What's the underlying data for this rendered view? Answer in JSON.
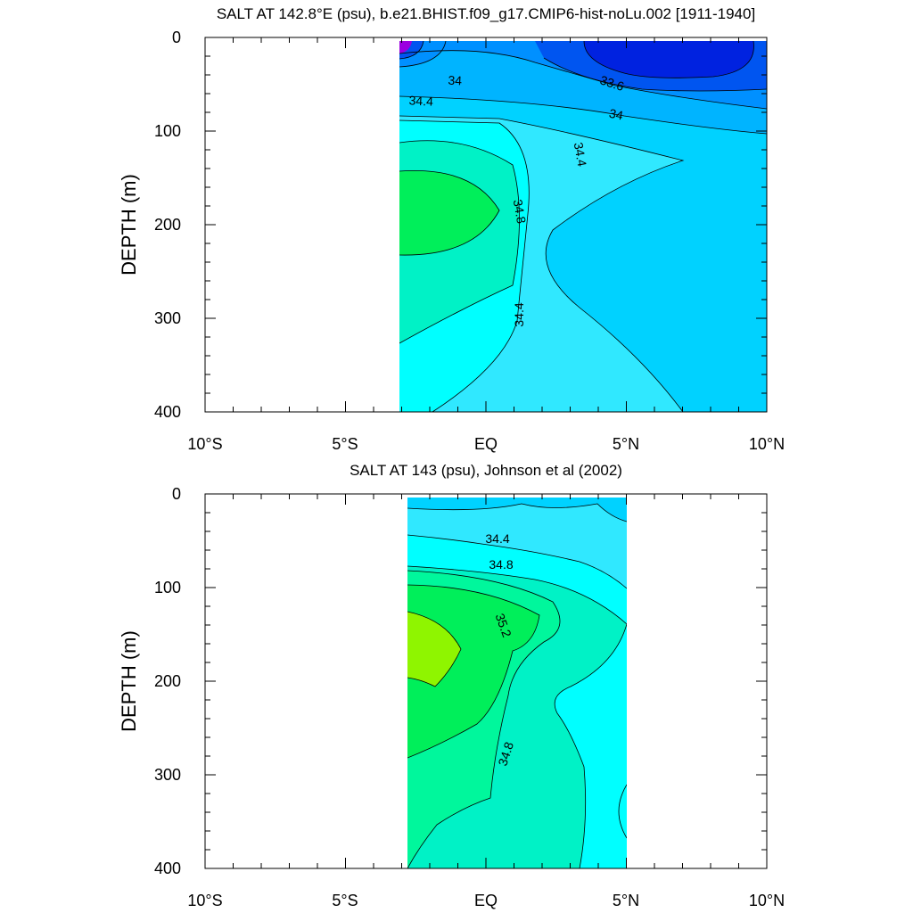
{
  "chart_data": [
    {
      "type": "contour",
      "title": "SALT AT 142.8°E (psu), b.e21.BHIST.f09_g17.CMIP6-hist-noLu.002 [1911-1940]",
      "ylabel": "DEPTH (m)",
      "xlabel": "",
      "xlim": [
        -10,
        10
      ],
      "ylim": [
        400,
        0
      ],
      "x_ticks": [
        "10°S",
        "5°S",
        "EQ",
        "5°N",
        "10°N"
      ],
      "y_ticks": [
        "0",
        "100",
        "200",
        "300",
        "400"
      ],
      "data_extent": {
        "lon": [
          -3.1,
          10.0
        ],
        "depth": [
          0,
          400
        ]
      },
      "contour_labels": [
        "34",
        "33.6",
        "34.4",
        "34",
        "34.4",
        "34.8",
        "34.4"
      ],
      "levels_psu": [
        33.2,
        33.4,
        33.6,
        33.8,
        34.0,
        34.2,
        34.4,
        34.6,
        34.8,
        35.0
      ],
      "colors": {
        "max_core": "#9b00e0",
        "very_fresh": "#0022e0",
        "fresh": "#0055f0",
        "s33_8": "#0090ff",
        "s34_0": "#00b4ff",
        "s34_2": "#00d2ff",
        "s34_4": "#30e8ff",
        "s34_6": "#00ffff",
        "s34_8": "#00f2c6",
        "s35_0": "#00ef5a"
      }
    },
    {
      "type": "contour",
      "title": "SALT AT 143 (psu), Johnson et al (2002)",
      "ylabel": "DEPTH (m)",
      "xlabel": "",
      "xlim": [
        -10,
        10
      ],
      "ylim": [
        400,
        0
      ],
      "x_ticks": [
        "10°S",
        "5°S",
        "EQ",
        "5°N",
        "10°N"
      ],
      "y_ticks": [
        "0",
        "100",
        "200",
        "300",
        "400"
      ],
      "data_extent": {
        "lon": [
          -2.8,
          5.0
        ],
        "depth": [
          5,
          400
        ]
      },
      "contour_labels": [
        "34.4",
        "34.8",
        "35.2",
        "34.8"
      ],
      "levels_psu": [
        34.2,
        34.4,
        34.6,
        34.8,
        35.0,
        35.2,
        35.4
      ],
      "colors": {
        "s34_2": "#00d2ff",
        "s34_4": "#30e8ff",
        "s34_6": "#00ffff",
        "s34_8": "#00f2c6",
        "s35_0": "#00f79c",
        "s35_2": "#00ef5a",
        "s35_4": "#8ff500"
      }
    }
  ]
}
